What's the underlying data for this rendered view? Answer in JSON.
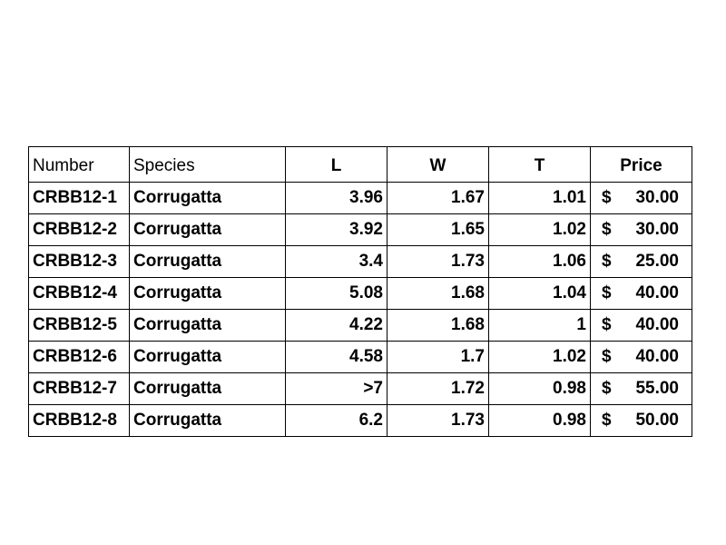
{
  "table": {
    "header": [
      "Number",
      "Species",
      "L",
      "W",
      "T",
      "Price"
    ],
    "rows": [
      [
        "CRBB12-1",
        "Corrugatta",
        "3.96",
        "1.67",
        "1.01",
        "$",
        "30.00"
      ],
      [
        "CRBB12-2",
        "Corrugatta",
        "3.92",
        "1.65",
        "1.02",
        "$",
        "30.00"
      ],
      [
        "CRBB12-3",
        "Corrugatta",
        "3.4",
        "1.73",
        "1.06",
        "$",
        "25.00"
      ],
      [
        "CRBB12-4",
        "Corrugatta",
        "5.08",
        "1.68",
        "1.04",
        "$",
        "40.00"
      ],
      [
        "CRBB12-5",
        "Corrugatta",
        "4.22",
        "1.68",
        "1",
        "$",
        "40.00"
      ],
      [
        "CRBB12-6",
        "Corrugatta",
        "4.58",
        "1.7",
        "1.02",
        "$",
        "40.00"
      ],
      [
        "CRBB12-7",
        "Corrugatta",
        ">7",
        "1.72",
        "0.98",
        "$",
        "55.00"
      ],
      [
        "CRBB12-8",
        "Corrugatta",
        "6.2",
        "1.73",
        "0.98",
        "$",
        "50.00"
      ]
    ]
  }
}
